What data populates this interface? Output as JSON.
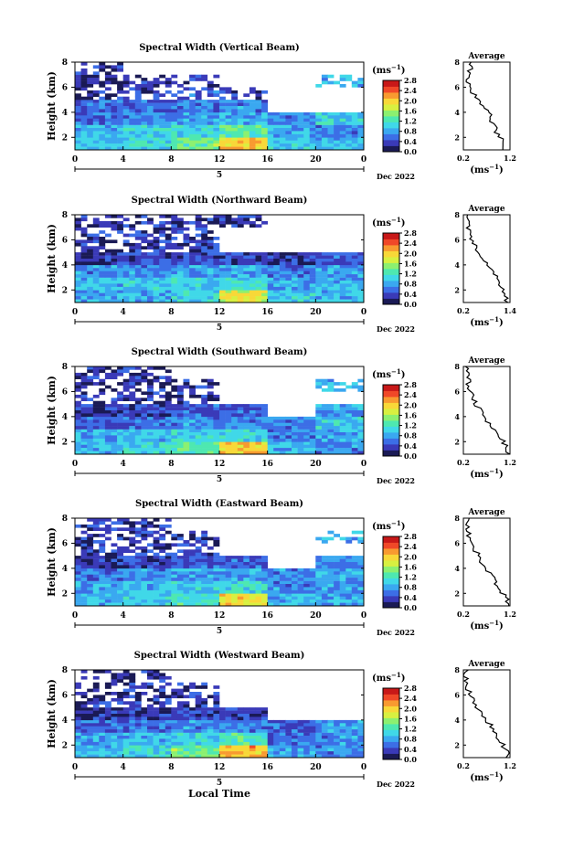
{
  "colorbar": {
    "unit": "(ms",
    "unit_exp": "−1",
    "ticks": [
      "0.0",
      "0.4",
      "0.8",
      "1.2",
      "1.6",
      "2.0",
      "2.4",
      "2.8"
    ],
    "colors": [
      "#1a1a55",
      "#3a3ab8",
      "#3c6ee6",
      "#3aa8f0",
      "#40d8e8",
      "#4ee8b0",
      "#8cf070",
      "#d8f040",
      "#f8d838",
      "#f89a30",
      "#f04828",
      "#c81818"
    ]
  },
  "xaxis": {
    "ticks": [
      "0",
      "4",
      "8",
      "12",
      "16",
      "20",
      "0"
    ],
    "day_left": "5",
    "date_right": "Dec 2022",
    "label": "Local Time"
  },
  "yaxis": {
    "label": "Height (km)",
    "ticks": [
      "8",
      "6",
      "4",
      "2"
    ]
  },
  "avg": {
    "title": "Average",
    "unit": "(ms",
    "unit_exp": "−1",
    "yticks": [
      "8",
      "6",
      "4",
      "2"
    ]
  },
  "panels": [
    {
      "title": "Spectral Width (Vertical Beam)",
      "avg_xticks": [
        "0.2",
        "1.2"
      ]
    },
    {
      "title": "Spectral Width (Northward Beam)",
      "avg_xticks": [
        "0.2",
        "1.4"
      ]
    },
    {
      "title": "Spectral Width (Southward Beam)",
      "avg_xticks": [
        "0.2",
        "1.2"
      ]
    },
    {
      "title": "Spectral Width (Eastward Beam)",
      "avg_xticks": [
        "0.2",
        "1.2"
      ]
    },
    {
      "title": "Spectral Width (Westward Beam)",
      "avg_xticks": [
        "0.2",
        "1.2"
      ]
    }
  ],
  "chart_data": [
    {
      "type": "heatmap",
      "title": "Spectral Width (Vertical Beam)",
      "xlabel": "",
      "ylabel": "Height (km)",
      "xlim": [
        0,
        24
      ],
      "ylim": [
        1,
        8
      ],
      "colorscale_range": [
        0.0,
        2.8
      ],
      "height_km": [
        1.5,
        2.5,
        3.5,
        4.5,
        5.5,
        6.5,
        7.5
      ],
      "hour_bins": [
        0,
        4,
        8,
        12,
        16,
        20
      ],
      "values": [
        [
          0.9,
          1.1,
          1.4,
          2.0,
          1.0,
          0.9
        ],
        [
          0.9,
          1.0,
          1.1,
          1.3,
          0.8,
          0.7
        ],
        [
          0.6,
          0.7,
          0.8,
          0.9,
          0.7,
          1.0
        ],
        [
          0.5,
          0.5,
          0.6,
          0.7,
          null,
          null
        ],
        [
          0.3,
          0.4,
          0.5,
          0.4,
          null,
          null
        ],
        [
          0.2,
          0.3,
          0.3,
          null,
          null,
          0.9
        ],
        [
          0.3,
          null,
          null,
          null,
          null,
          null
        ]
      ],
      "average_profile": {
        "xlim": [
          0.2,
          1.2
        ],
        "height_km": [
          1.5,
          2.5,
          3.5,
          4.5,
          5.5,
          6.5,
          7.5
        ],
        "values": [
          1.1,
          0.9,
          0.8,
          0.65,
          0.4,
          0.3,
          0.35
        ]
      }
    },
    {
      "type": "heatmap",
      "title": "Spectral Width (Northward Beam)",
      "xlabel": "",
      "ylabel": "Height (km)",
      "xlim": [
        0,
        24
      ],
      "ylim": [
        1,
        8
      ],
      "colorscale_range": [
        0.0,
        2.8
      ],
      "height_km": [
        1.5,
        2.5,
        3.5,
        4.5,
        5.5,
        6.5,
        7.5
      ],
      "hour_bins": [
        0,
        4,
        8,
        12,
        16,
        20
      ],
      "values": [
        [
          0.8,
          0.9,
          1.1,
          1.8,
          1.0,
          0.9
        ],
        [
          0.9,
          1.0,
          1.0,
          1.1,
          0.8,
          0.9
        ],
        [
          0.7,
          0.7,
          0.8,
          0.8,
          0.6,
          0.8
        ],
        [
          0.3,
          0.4,
          0.4,
          0.4,
          0.3,
          0.5
        ],
        [
          0.3,
          0.4,
          0.4,
          null,
          null,
          null
        ],
        [
          0.3,
          0.3,
          0.4,
          null,
          null,
          null
        ],
        [
          0.3,
          0.3,
          0.3,
          0.3,
          null,
          null
        ]
      ],
      "average_profile": {
        "xlim": [
          0.2,
          1.4
        ],
        "height_km": [
          1.5,
          2.5,
          3.5,
          4.5,
          5.5,
          6.5,
          7.5
        ],
        "values": [
          1.3,
          1.1,
          1.0,
          0.7,
          0.5,
          0.35,
          0.3
        ]
      }
    },
    {
      "type": "heatmap",
      "title": "Spectral Width (Southward Beam)",
      "xlabel": "",
      "ylabel": "Height (km)",
      "xlim": [
        0,
        24
      ],
      "ylim": [
        1,
        8
      ],
      "colorscale_range": [
        0.0,
        2.8
      ],
      "height_km": [
        1.5,
        2.5,
        3.5,
        4.5,
        5.5,
        6.5,
        7.5
      ],
      "hour_bins": [
        0,
        4,
        8,
        12,
        16,
        20
      ],
      "values": [
        [
          0.9,
          1.0,
          1.3,
          2.0,
          0.9,
          0.7
        ],
        [
          0.8,
          0.9,
          1.0,
          1.1,
          0.7,
          0.8
        ],
        [
          0.5,
          0.6,
          0.7,
          0.7,
          0.7,
          1.0
        ],
        [
          0.3,
          0.4,
          0.5,
          0.5,
          null,
          0.8
        ],
        [
          0.3,
          0.3,
          0.3,
          null,
          null,
          null
        ],
        [
          0.2,
          0.3,
          0.3,
          null,
          null,
          0.9
        ],
        [
          0.3,
          0.3,
          null,
          null,
          null,
          null
        ]
      ],
      "average_profile": {
        "xlim": [
          0.2,
          1.2
        ],
        "height_km": [
          1.5,
          2.5,
          3.5,
          4.5,
          5.5,
          6.5,
          7.5
        ],
        "values": [
          1.15,
          0.95,
          0.75,
          0.55,
          0.4,
          0.3,
          0.3
        ]
      }
    },
    {
      "type": "heatmap",
      "title": "Spectral Width (Eastward Beam)",
      "xlabel": "",
      "ylabel": "Height (km)",
      "xlim": [
        0,
        24
      ],
      "ylim": [
        1,
        8
      ],
      "colorscale_range": [
        0.0,
        2.8
      ],
      "height_km": [
        1.5,
        2.5,
        3.5,
        4.5,
        5.5,
        6.5,
        7.5
      ],
      "hour_bins": [
        0,
        4,
        8,
        12,
        16,
        20
      ],
      "values": [
        [
          0.9,
          1.0,
          1.2,
          1.9,
          0.9,
          0.8
        ],
        [
          0.8,
          0.9,
          1.0,
          1.1,
          0.7,
          0.8
        ],
        [
          0.6,
          0.7,
          0.8,
          0.8,
          0.7,
          0.9
        ],
        [
          0.3,
          0.4,
          0.5,
          0.5,
          null,
          0.7
        ],
        [
          0.3,
          0.3,
          0.4,
          null,
          null,
          null
        ],
        [
          0.3,
          0.3,
          0.3,
          null,
          null,
          0.9
        ],
        [
          0.3,
          0.3,
          null,
          null,
          null,
          null
        ]
      ],
      "average_profile": {
        "xlim": [
          0.2,
          1.2
        ],
        "height_km": [
          1.5,
          2.5,
          3.5,
          4.5,
          5.5,
          6.5,
          7.5
        ],
        "values": [
          1.15,
          0.95,
          0.8,
          0.6,
          0.45,
          0.3,
          0.3
        ]
      }
    },
    {
      "type": "heatmap",
      "title": "Spectral Width (Westward Beam)",
      "xlabel": "Local Time",
      "ylabel": "Height (km)",
      "xlim": [
        0,
        24
      ],
      "ylim": [
        1,
        8
      ],
      "colorscale_range": [
        0.0,
        2.8
      ],
      "height_km": [
        1.5,
        2.5,
        3.5,
        4.5,
        5.5,
        6.5,
        7.5
      ],
      "hour_bins": [
        0,
        4,
        8,
        12,
        16,
        20
      ],
      "values": [
        [
          0.9,
          1.1,
          1.4,
          2.1,
          0.8,
          0.7
        ],
        [
          0.8,
          0.9,
          1.0,
          1.2,
          0.6,
          0.7
        ],
        [
          0.5,
          0.6,
          0.7,
          0.7,
          0.5,
          0.8
        ],
        [
          0.3,
          0.3,
          0.4,
          0.4,
          null,
          null
        ],
        [
          0.3,
          0.3,
          0.3,
          null,
          null,
          null
        ],
        [
          0.2,
          0.3,
          0.3,
          null,
          null,
          null
        ],
        [
          0.2,
          0.3,
          null,
          null,
          null,
          null
        ]
      ],
      "average_profile": {
        "xlim": [
          0.2,
          1.2
        ],
        "height_km": [
          1.5,
          2.5,
          3.5,
          4.5,
          5.5,
          6.5,
          7.5
        ],
        "values": [
          1.15,
          0.95,
          0.8,
          0.6,
          0.4,
          0.3,
          0.25
        ]
      }
    }
  ]
}
